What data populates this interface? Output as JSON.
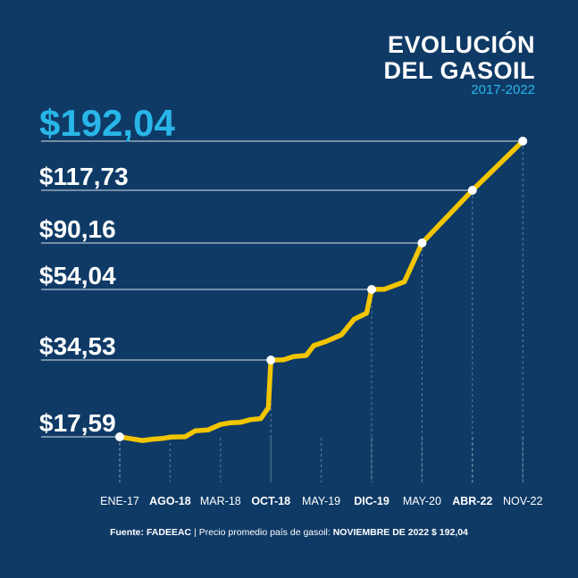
{
  "header": {
    "title_line1": "EVOLUCIÓN",
    "title_line2": "DEL GASOIL",
    "subtitle": "2017-2022"
  },
  "footer": {
    "label": "Fuente:",
    "source": "FADEEAC",
    "separator": " | ",
    "description": "Precio promedio país de gasoil: ",
    "highlight": "NOVIEMBRE DE 2022 $ 192,04"
  },
  "colors": {
    "background": "#0f3a66",
    "line": "#f2c500",
    "highlight": "#29b6e8",
    "text": "#ffffff"
  },
  "chart_data": {
    "type": "line",
    "x_ticks": [
      {
        "label": "ENE-17",
        "bold": false
      },
      {
        "label": "AGO-18",
        "bold": true
      },
      {
        "label": "MAR-18",
        "bold": false
      },
      {
        "label": "OCT-18",
        "bold": true
      },
      {
        "label": "MAY-19",
        "bold": false
      },
      {
        "label": "DIC-19",
        "bold": true
      },
      {
        "label": "MAY-20",
        "bold": false
      },
      {
        "label": "ABR-22",
        "bold": true
      },
      {
        "label": "NOV-22",
        "bold": false
      }
    ],
    "highlighted_points": [
      {
        "tick": 0,
        "value": 17.59,
        "label": "$17,59"
      },
      {
        "tick": 3,
        "value": 34.53,
        "label": "$34,53"
      },
      {
        "tick": 5,
        "value": 54.04,
        "label": "$54,04"
      },
      {
        "tick": 6,
        "value": 90.16,
        "label": "$90,16"
      },
      {
        "tick": 7,
        "value": 117.73,
        "label": "$117,73"
      },
      {
        "tick": 8,
        "value": 192.04,
        "label": "$192,04",
        "emphasis": true
      }
    ],
    "series": [
      {
        "points": [
          [
            0,
            17.59
          ],
          [
            0.2,
            17.1
          ],
          [
            0.45,
            16.5
          ],
          [
            0.65,
            16.9
          ],
          [
            0.85,
            17.1
          ],
          [
            1.0,
            17.5
          ],
          [
            1.3,
            17.6
          ],
          [
            1.5,
            18.9
          ],
          [
            1.75,
            19.1
          ],
          [
            2.0,
            20.3
          ],
          [
            2.2,
            20.7
          ],
          [
            2.4,
            20.8
          ],
          [
            2.6,
            21.4
          ],
          [
            2.8,
            21.6
          ],
          [
            2.95,
            24.0
          ],
          [
            3.0,
            34.53
          ],
          [
            3.25,
            34.6
          ],
          [
            3.45,
            35.5
          ],
          [
            3.7,
            35.8
          ],
          [
            3.85,
            38.5
          ],
          [
            4.1,
            39.7
          ],
          [
            4.4,
            41.5
          ],
          [
            4.65,
            45.8
          ],
          [
            4.9,
            47.5
          ],
          [
            5.0,
            54.04
          ],
          [
            5.25,
            54.2
          ],
          [
            5.65,
            60.0
          ],
          [
            6.0,
            90.16
          ],
          [
            7.0,
            117.73
          ],
          [
            8.0,
            192.04
          ]
        ]
      }
    ]
  }
}
